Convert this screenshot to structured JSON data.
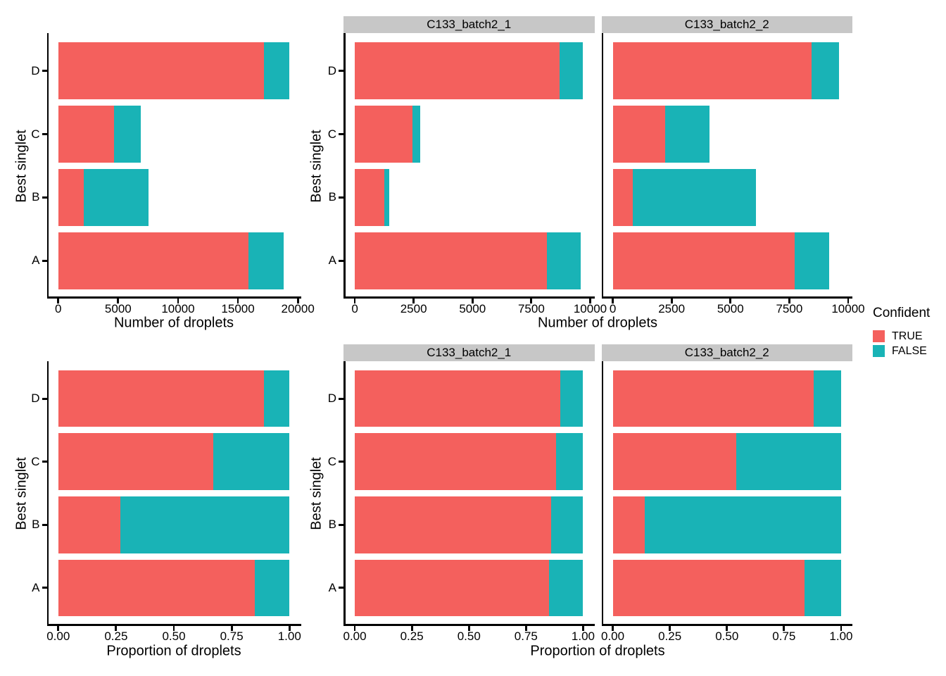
{
  "figure": {
    "background": "#ffffff",
    "series_colors": {
      "TRUE": "#F4605D",
      "FALSE": "#19B3B6"
    },
    "strip_bg": "#C7C7C7",
    "axis_color": "#000000",
    "legend": {
      "title": "Confident",
      "entries": [
        {
          "label": "TRUE",
          "color": "#F4605D"
        },
        {
          "label": "FALSE",
          "color": "#19B3B6"
        }
      ],
      "position": "right"
    }
  },
  "chart_data": [
    {
      "id": "droplet-counts-overall",
      "type": "bar",
      "orientation": "horizontal",
      "stacked": true,
      "xlabel": "Number of droplets",
      "ylabel": "Best singlet",
      "categories": [
        "D",
        "C",
        "B",
        "A"
      ],
      "series": [
        {
          "name": "TRUE",
          "values": [
            17150,
            4680,
            2110,
            15890
          ]
        },
        {
          "name": "FALSE",
          "values": [
            2150,
            2220,
            5430,
            2910
          ]
        }
      ],
      "xlim": [
        0,
        20000
      ],
      "xticks": [
        0,
        5000,
        10000,
        15000,
        20000
      ],
      "xtick_labels": [
        "0",
        "5000",
        "10000",
        "15000",
        "20000"
      ],
      "grid": false,
      "legend_position": "right"
    },
    {
      "id": "droplet-counts-by-sample",
      "type": "bar",
      "orientation": "horizontal",
      "stacked": true,
      "xlabel": "Number of droplets",
      "ylabel": "Best singlet",
      "categories": [
        "D",
        "C",
        "B",
        "A"
      ],
      "facets": [
        {
          "label": "C133_batch2_1",
          "series": [
            {
              "name": "TRUE",
              "values": [
                8700,
                2440,
                1250,
                8160
              ]
            },
            {
              "name": "FALSE",
              "values": [
                1000,
                350,
                200,
                1440
              ]
            }
          ]
        },
        {
          "label": "C133_batch2_2",
          "series": [
            {
              "name": "TRUE",
              "values": [
                8450,
                2240,
                860,
                7730
              ]
            },
            {
              "name": "FALSE",
              "values": [
                1150,
                1870,
                5230,
                1470
              ]
            }
          ]
        }
      ],
      "xlim": [
        0,
        10000
      ],
      "xticks": [
        0,
        2500,
        5000,
        7500,
        10000
      ],
      "xtick_labels": [
        "0",
        "2500",
        "5000",
        "7500",
        "10000"
      ],
      "grid": false
    },
    {
      "id": "droplet-proportions-overall",
      "type": "bar",
      "orientation": "horizontal",
      "stacked": true,
      "xlabel": "Proportion of droplets",
      "ylabel": "Best singlet",
      "categories": [
        "D",
        "C",
        "B",
        "A"
      ],
      "series": [
        {
          "name": "TRUE",
          "values": [
            0.89,
            0.67,
            0.27,
            0.85
          ]
        },
        {
          "name": "FALSE",
          "values": [
            0.11,
            0.33,
            0.73,
            0.15
          ]
        }
      ],
      "xlim": [
        0,
        1
      ],
      "xticks": [
        0,
        0.25,
        0.5,
        0.75,
        1
      ],
      "xtick_labels": [
        "0.00",
        "0.25",
        "0.50",
        "0.75",
        "1.00"
      ],
      "grid": false
    },
    {
      "id": "droplet-proportions-by-sample",
      "type": "bar",
      "orientation": "horizontal",
      "stacked": true,
      "xlabel": "Proportion of droplets",
      "ylabel": "Best singlet",
      "categories": [
        "D",
        "C",
        "B",
        "A"
      ],
      "facets": [
        {
          "label": "C133_batch2_1",
          "series": [
            {
              "name": "TRUE",
              "values": [
                0.9,
                0.88,
                0.86,
                0.85
              ]
            },
            {
              "name": "FALSE",
              "values": [
                0.1,
                0.12,
                0.14,
                0.15
              ]
            }
          ]
        },
        {
          "label": "C133_batch2_2",
          "series": [
            {
              "name": "TRUE",
              "values": [
                0.88,
                0.54,
                0.14,
                0.84
              ]
            },
            {
              "name": "FALSE",
              "values": [
                0.12,
                0.46,
                0.86,
                0.16
              ]
            }
          ]
        }
      ],
      "xlim": [
        0,
        1
      ],
      "xticks": [
        0,
        0.25,
        0.5,
        0.75,
        1
      ],
      "xtick_labels": [
        "0.00",
        "0.25",
        "0.50",
        "0.75",
        "1.00"
      ],
      "grid": false
    }
  ]
}
